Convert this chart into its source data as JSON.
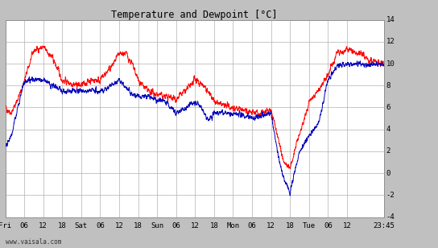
{
  "title": "Temperature and Dewpoint [˚C]",
  "bg_color": "#c0c0c0",
  "plot_bg_color": "#ffffff",
  "temp_color": "#ff0000",
  "dewp_color": "#0000bb",
  "grid_color": "#b0b0b0",
  "ymin": -4,
  "ymax": 14,
  "yticks": [
    -4,
    -2,
    0,
    2,
    4,
    6,
    8,
    10,
    12,
    14
  ],
  "xtick_labels": [
    "Fri",
    "06",
    "12",
    "18",
    "Sat",
    "06",
    "12",
    "18",
    "Sun",
    "06",
    "12",
    "18",
    "Mon",
    "06",
    "12",
    "18",
    "Tue",
    "06",
    "12",
    "23:45"
  ],
  "xtick_positions": [
    0,
    6,
    12,
    18,
    24,
    30,
    36,
    42,
    48,
    54,
    60,
    66,
    72,
    78,
    84,
    90,
    96,
    102,
    108,
    119.75
  ],
  "watermark": "www.vaisala.com",
  "temp_kp_t": [
    0,
    2,
    5,
    9,
    12,
    15,
    18,
    21,
    24,
    27,
    30,
    33,
    36,
    38,
    40,
    42,
    45,
    48,
    51,
    54,
    57,
    60,
    63,
    66,
    69,
    72,
    75,
    78,
    81,
    84,
    86,
    88,
    90,
    93,
    96,
    99,
    102,
    105,
    108,
    112,
    116,
    119.75
  ],
  "temp_kp_v": [
    6.0,
    5.5,
    7.5,
    11.2,
    11.5,
    10.5,
    8.5,
    8.2,
    8.0,
    8.5,
    8.5,
    9.5,
    10.8,
    11.0,
    10.0,
    8.5,
    7.5,
    7.2,
    7.0,
    6.8,
    7.5,
    8.5,
    8.0,
    6.5,
    6.2,
    6.0,
    5.8,
    5.5,
    5.5,
    5.8,
    3.5,
    1.0,
    0.5,
    3.5,
    6.5,
    7.5,
    9.0,
    11.0,
    11.2,
    11.0,
    10.2,
    10.0
  ],
  "dewp_kp_t": [
    0,
    2,
    4,
    6,
    9,
    12,
    15,
    18,
    21,
    24,
    27,
    30,
    33,
    36,
    39,
    42,
    45,
    48,
    51,
    54,
    57,
    60,
    62,
    64,
    66,
    69,
    72,
    75,
    78,
    81,
    84,
    86,
    88,
    90,
    93,
    96,
    99,
    102,
    105,
    108,
    112,
    116,
    119.75
  ],
  "dewp_kp_v": [
    2.5,
    3.5,
    6.0,
    8.5,
    8.5,
    8.5,
    8.0,
    7.5,
    7.5,
    7.5,
    7.5,
    7.5,
    8.0,
    8.5,
    7.5,
    7.0,
    7.0,
    6.8,
    6.5,
    5.5,
    6.0,
    6.5,
    6.0,
    4.8,
    5.5,
    5.5,
    5.5,
    5.3,
    5.0,
    5.2,
    5.5,
    2.0,
    -0.5,
    -1.8,
    2.0,
    3.5,
    4.5,
    8.5,
    9.8,
    10.0,
    10.0,
    10.0,
    9.8
  ]
}
